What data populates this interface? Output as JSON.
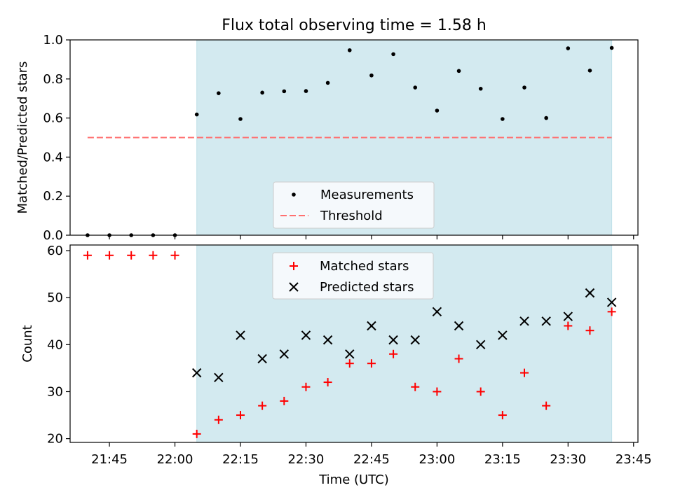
{
  "title": "Flux total observing time = 1.58 h",
  "colors": {
    "shade": "#d3eaf0",
    "measurement": "#000000",
    "threshold": "#ff7070",
    "matched": "#ff0000",
    "predicted": "#000000"
  },
  "chart_data": [
    {
      "type": "scatter",
      "panel": "top",
      "ylabel": "Matched/Predicted stars",
      "ylim": [
        0,
        1.0
      ],
      "yticks": [
        "0.0",
        "0.2",
        "0.4",
        "0.6",
        "0.8",
        "1.0"
      ],
      "xlim": [
        "21:36",
        "23:46"
      ],
      "shaded_span": [
        "22:05",
        "23:40"
      ],
      "threshold": {
        "name": "Threshold",
        "value": 0.5,
        "x_range": [
          "21:40",
          "23:40"
        ]
      },
      "legend": {
        "placement": "lower-center",
        "entries": [
          "Measurements",
          "Threshold"
        ]
      },
      "series": [
        {
          "name": "Measurements",
          "x": [
            "21:40",
            "21:45",
            "21:50",
            "21:55",
            "22:00",
            "22:05",
            "22:10",
            "22:15",
            "22:20",
            "22:25",
            "22:30",
            "22:35",
            "22:40",
            "22:45",
            "22:50",
            "22:55",
            "23:00",
            "23:05",
            "23:10",
            "23:15",
            "23:20",
            "23:25",
            "23:30",
            "23:35",
            "23:40"
          ],
          "values": [
            0,
            0,
            0,
            0,
            0,
            0.618,
            0.727,
            0.595,
            0.73,
            0.737,
            0.738,
            0.78,
            0.947,
            0.818,
            0.927,
            0.756,
            0.638,
            0.841,
            0.75,
            0.595,
            0.756,
            0.6,
            0.957,
            0.843,
            0.959
          ]
        }
      ]
    },
    {
      "type": "scatter",
      "panel": "bottom",
      "xlabel": "Time (UTC)",
      "ylabel": "Count",
      "ylim": [
        19.2,
        61.2
      ],
      "yticks": [
        "20",
        "30",
        "40",
        "50",
        "60"
      ],
      "xticks": [
        "21:45",
        "22:00",
        "22:15",
        "22:30",
        "22:45",
        "23:00",
        "23:15",
        "23:30",
        "23:45"
      ],
      "xlim": [
        "21:36",
        "23:46"
      ],
      "shaded_span": [
        "22:05",
        "23:40"
      ],
      "legend": {
        "placement": "upper-center",
        "entries": [
          "Matched stars",
          "Predicted stars"
        ]
      },
      "series": [
        {
          "name": "Matched stars",
          "x": [
            "21:40",
            "21:45",
            "21:50",
            "21:55",
            "22:00",
            "22:05",
            "22:10",
            "22:15",
            "22:20",
            "22:25",
            "22:30",
            "22:35",
            "22:40",
            "22:45",
            "22:50",
            "22:55",
            "23:00",
            "23:05",
            "23:10",
            "23:15",
            "23:20",
            "23:25",
            "23:30",
            "23:35",
            "23:40"
          ],
          "values": [
            59,
            59,
            59,
            59,
            59,
            21,
            24,
            25,
            27,
            28,
            31,
            32,
            36,
            36,
            38,
            31,
            30,
            37,
            30,
            25,
            34,
            27,
            44,
            43,
            47
          ]
        },
        {
          "name": "Predicted stars",
          "x": [
            "22:05",
            "22:10",
            "22:15",
            "22:20",
            "22:25",
            "22:30",
            "22:35",
            "22:40",
            "22:45",
            "22:50",
            "22:55",
            "23:00",
            "23:05",
            "23:10",
            "23:15",
            "23:20",
            "23:25",
            "23:30",
            "23:35",
            "23:40"
          ],
          "values": [
            34,
            33,
            42,
            37,
            38,
            42,
            41,
            38,
            44,
            41,
            41,
            47,
            44,
            40,
            42,
            45,
            45,
            46,
            51,
            49
          ]
        }
      ]
    }
  ]
}
